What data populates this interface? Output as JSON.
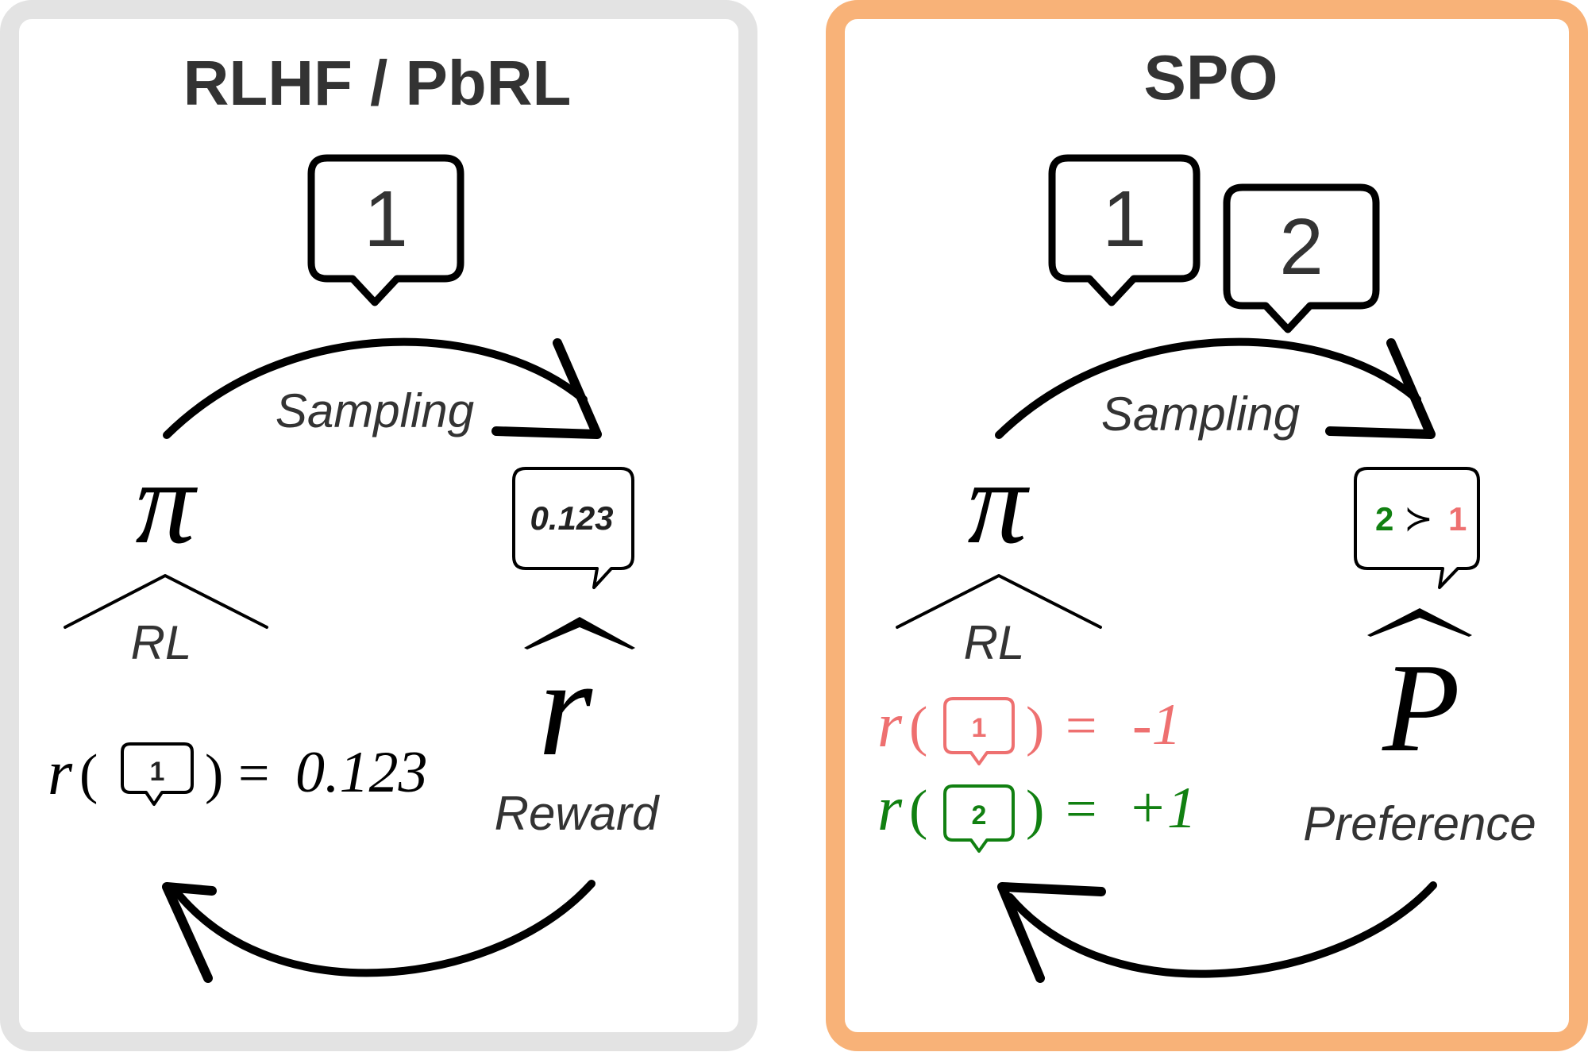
{
  "colors": {
    "left_frame": "#e3e3e3",
    "right_frame": "#f8b278",
    "text": "#333333",
    "ink": "#000000",
    "green": "#118011",
    "red": "#ee7070"
  },
  "left": {
    "title": "RLHF / PbRL",
    "sample_label": "1",
    "sampling_label": "Sampling",
    "policy_symbol": "π",
    "rl_label": "RL",
    "reward_bubble_value": "0.123",
    "reward_symbol": "r",
    "reward_label": "Reward",
    "eq": {
      "fn": "r",
      "open": "(",
      "bubble": "1",
      "close": ")",
      "equals": "=",
      "value": "0.123"
    }
  },
  "right": {
    "title": "SPO",
    "sample_labels": [
      "1",
      "2"
    ],
    "sampling_label": "Sampling",
    "policy_symbol": "π",
    "rl_label": "RL",
    "pref_bubble": {
      "winner": "2",
      "op": "≻",
      "loser": "1"
    },
    "pref_symbol": "P",
    "pref_label": "Preference",
    "eq1": {
      "fn": "r",
      "open": "(",
      "bubble": "1",
      "close": ")",
      "equals": "=",
      "value": "-1"
    },
    "eq2": {
      "fn": "r",
      "open": "(",
      "bubble": "2",
      "close": ")",
      "equals": "=",
      "value": "+1"
    }
  }
}
